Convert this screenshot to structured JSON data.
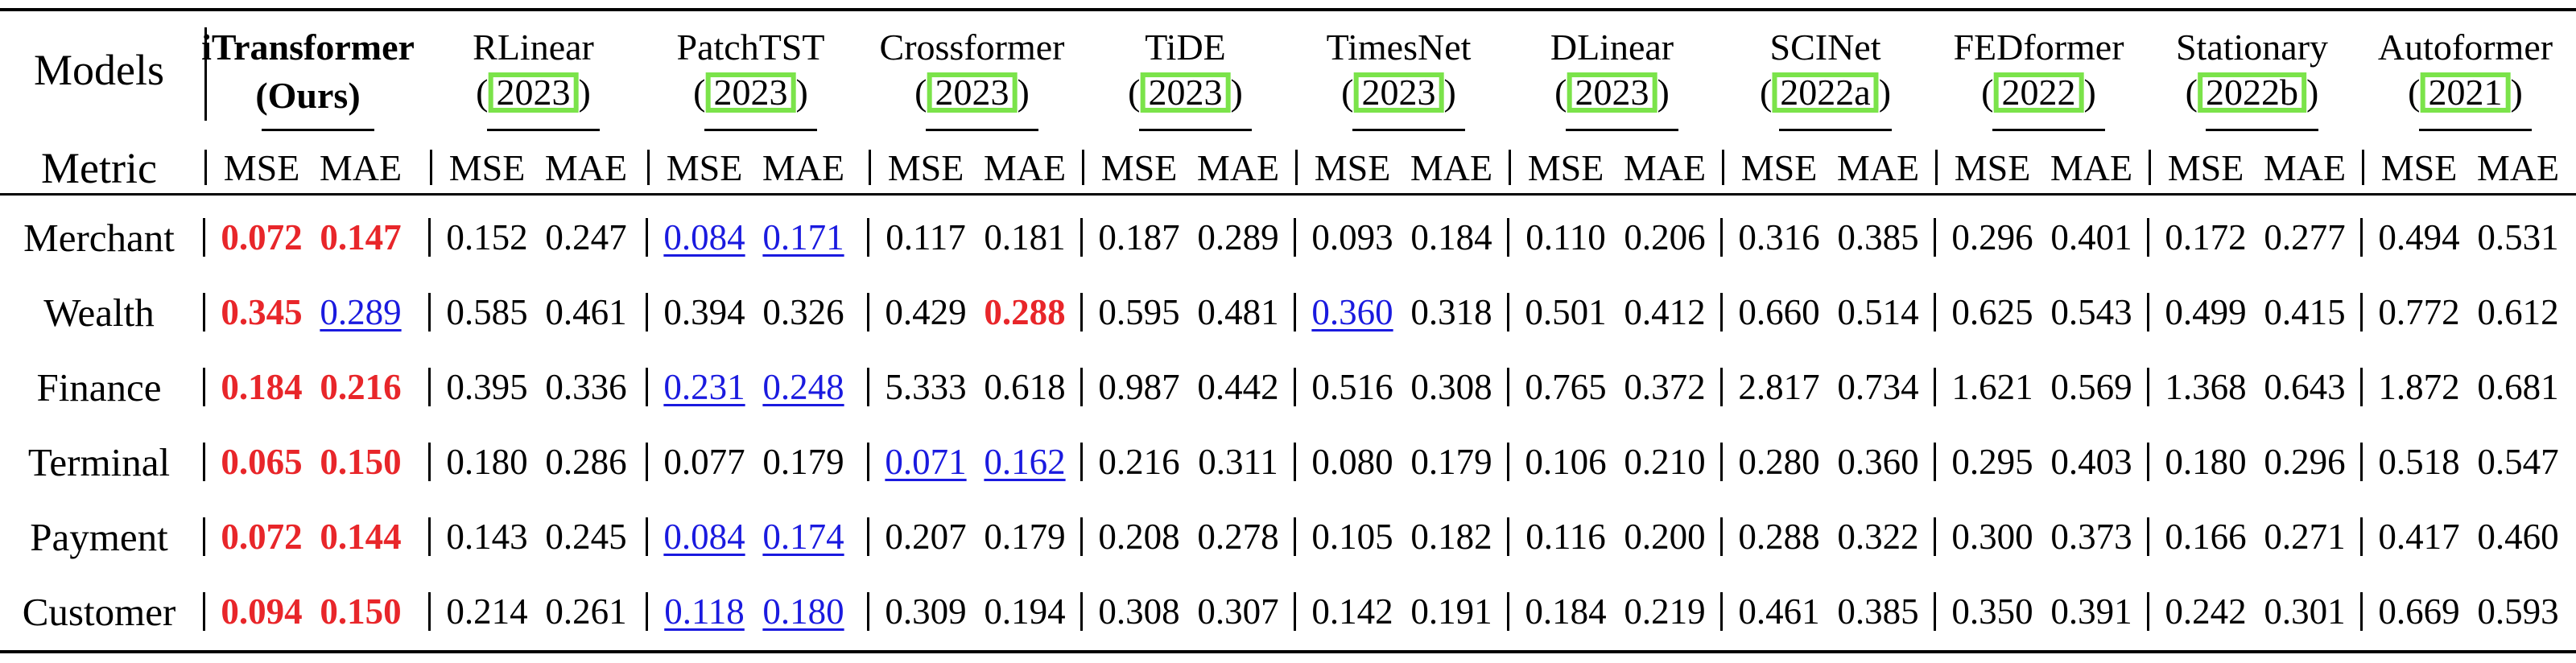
{
  "header": {
    "models_label": "Models",
    "metric_label": "Metric",
    "models": [
      {
        "name": "iTransformer",
        "year": "(Ours)",
        "bold": true
      },
      {
        "name": "RLinear",
        "year": "2023"
      },
      {
        "name": "PatchTST",
        "year": "2023"
      },
      {
        "name": "Crossformer",
        "year": "2023"
      },
      {
        "name": "TiDE",
        "year": "2023"
      },
      {
        "name": "TimesNet",
        "year": "2023"
      },
      {
        "name": "DLinear",
        "year": "2023"
      },
      {
        "name": "SCINet",
        "year": "2022a"
      },
      {
        "name": "FEDformer",
        "year": "2022"
      },
      {
        "name": "Stationary",
        "year": "2022b"
      },
      {
        "name": "Autoformer",
        "year": "2021"
      }
    ],
    "metric_names": [
      "MSE",
      "MAE"
    ]
  },
  "rows": [
    {
      "label": "Merchant",
      "values": [
        "0.072",
        "0.147",
        "0.152",
        "0.247",
        "0.084",
        "0.171",
        "0.117",
        "0.181",
        "0.187",
        "0.289",
        "0.093",
        "0.184",
        "0.110",
        "0.206",
        "0.316",
        "0.385",
        "0.296",
        "0.401",
        "0.172",
        "0.277",
        "0.494",
        "0.531"
      ]
    },
    {
      "label": "Wealth",
      "values": [
        "0.345",
        "0.289",
        "0.585",
        "0.461",
        "0.394",
        "0.326",
        "0.429",
        "0.288",
        "0.595",
        "0.481",
        "0.360",
        "0.318",
        "0.501",
        "0.412",
        "0.660",
        "0.514",
        "0.625",
        "0.543",
        "0.499",
        "0.415",
        "0.772",
        "0.612"
      ]
    },
    {
      "label": "Finance",
      "values": [
        "0.184",
        "0.216",
        "0.395",
        "0.336",
        "0.231",
        "0.248",
        "5.333",
        "0.618",
        "0.987",
        "0.442",
        "0.516",
        "0.308",
        "0.765",
        "0.372",
        "2.817",
        "0.734",
        "1.621",
        "0.569",
        "1.368",
        "0.643",
        "1.872",
        "0.681"
      ]
    },
    {
      "label": "Terminal",
      "values": [
        "0.065",
        "0.150",
        "0.180",
        "0.286",
        "0.077",
        "0.179",
        "0.071",
        "0.162",
        "0.216",
        "0.311",
        "0.080",
        "0.179",
        "0.106",
        "0.210",
        "0.280",
        "0.360",
        "0.295",
        "0.403",
        "0.180",
        "0.296",
        "0.518",
        "0.547"
      ]
    },
    {
      "label": "Payment",
      "values": [
        "0.072",
        "0.144",
        "0.143",
        "0.245",
        "0.084",
        "0.174",
        "0.207",
        "0.179",
        "0.208",
        "0.278",
        "0.105",
        "0.182",
        "0.116",
        "0.200",
        "0.288",
        "0.322",
        "0.300",
        "0.373",
        "0.166",
        "0.271",
        "0.417",
        "0.460"
      ]
    },
    {
      "label": "Customer",
      "values": [
        "0.094",
        "0.150",
        "0.214",
        "0.261",
        "0.118",
        "0.180",
        "0.309",
        "0.194",
        "0.308",
        "0.307",
        "0.142",
        "0.191",
        "0.184",
        "0.219",
        "0.461",
        "0.385",
        "0.350",
        "0.391",
        "0.242",
        "0.301",
        "0.669",
        "0.593"
      ]
    }
  ],
  "styles": {
    "best_color": "#e8262a",
    "second_color": "#1a1adf",
    "year_box_color": "#7be34a",
    "best": [
      [
        0,
        0
      ],
      [
        0,
        1
      ],
      [
        1,
        0
      ],
      [
        1,
        7
      ],
      [
        2,
        0
      ],
      [
        2,
        1
      ],
      [
        3,
        0
      ],
      [
        3,
        1
      ],
      [
        4,
        0
      ],
      [
        4,
        1
      ],
      [
        5,
        0
      ],
      [
        5,
        1
      ]
    ],
    "second": [
      [
        0,
        4
      ],
      [
        0,
        5
      ],
      [
        1,
        1
      ],
      [
        1,
        10
      ],
      [
        2,
        4
      ],
      [
        2,
        5
      ],
      [
        3,
        6
      ],
      [
        3,
        7
      ],
      [
        4,
        4
      ],
      [
        4,
        5
      ],
      [
        5,
        4
      ],
      [
        5,
        5
      ]
    ]
  }
}
